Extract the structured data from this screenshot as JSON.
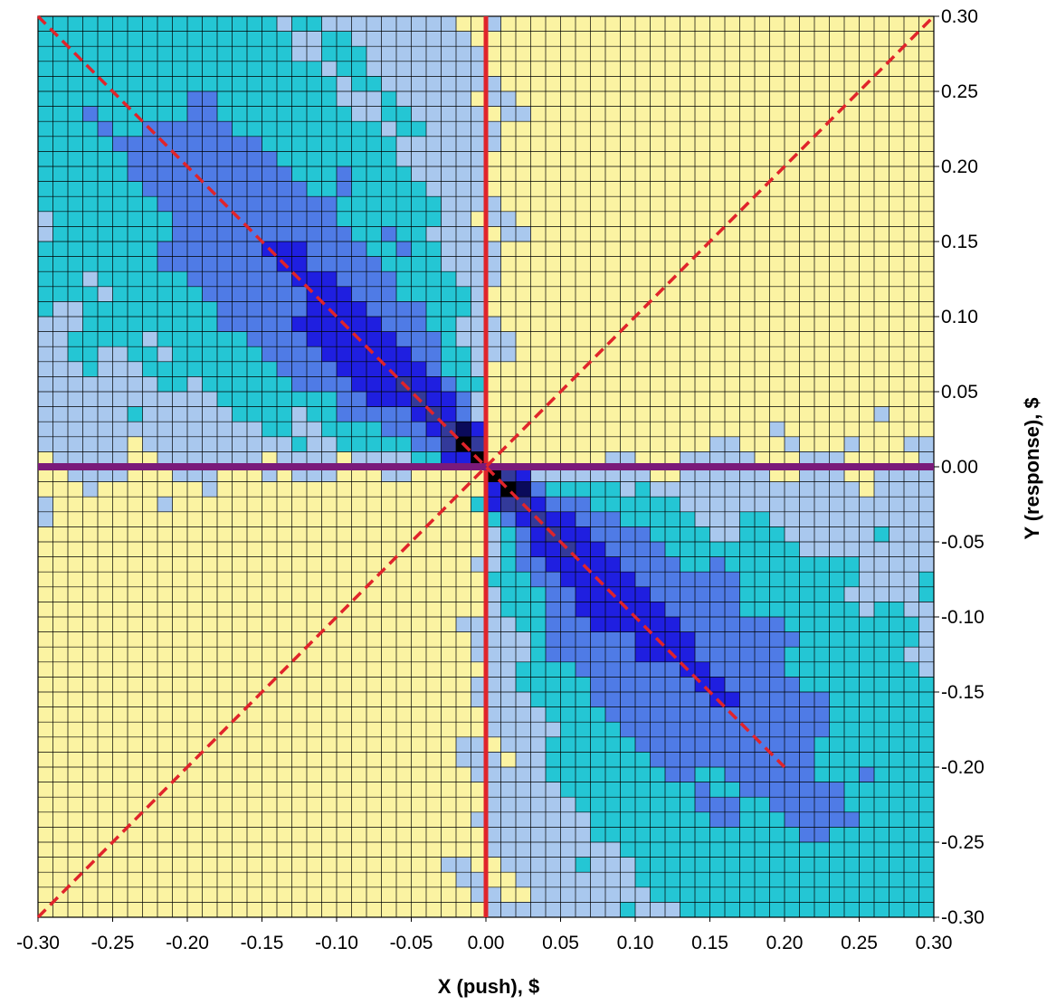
{
  "chart_data": {
    "type": "heatmap",
    "title": "",
    "xlabel": "X (push), $",
    "ylabel": "Y (response), $",
    "xlim": [
      -0.3,
      0.3
    ],
    "ylim": [
      -0.3,
      0.3
    ],
    "x_ticks": [
      "-0.30",
      "-0.25",
      "-0.20",
      "-0.15",
      "-0.10",
      "-0.05",
      "0.00",
      "0.05",
      "0.10",
      "0.15",
      "0.20",
      "0.25",
      "0.30"
    ],
    "y_ticks": [
      "0.30",
      "0.25",
      "0.20",
      "0.15",
      "0.10",
      "0.05",
      "0.00",
      "-0.05",
      "-0.10",
      "-0.15",
      "-0.20",
      "-0.25",
      "-0.30"
    ],
    "y_axis_side": "right",
    "grid": true,
    "grid_step": 0.01,
    "contour_levels": [
      {
        "level": 0,
        "color": "#fbf3a2"
      },
      {
        "level": 1,
        "color": "#a9c8ee"
      },
      {
        "level": 2,
        "color": "#24c6d4"
      },
      {
        "level": 3,
        "color": "#4f7be6"
      },
      {
        "level": 4,
        "color": "#1f1fe0"
      },
      {
        "level": 5,
        "color": "#333a9a"
      },
      {
        "level": 6,
        "color": "#0a0a5a"
      },
      {
        "level": 7,
        "color": "#000000"
      }
    ],
    "reference_lines": [
      {
        "name": "x=0",
        "style": "solid",
        "color": "#e0242b",
        "x": [
          0,
          0
        ],
        "y": [
          -0.3,
          0.3
        ]
      },
      {
        "name": "y=0",
        "style": "solid",
        "color": "#7a1a7a",
        "x": [
          -0.3,
          0.3
        ],
        "y": [
          0,
          0
        ]
      },
      {
        "name": "y=x",
        "style": "dashed",
        "color": "#e0242b",
        "x": [
          -0.3,
          0.3
        ],
        "y": [
          -0.3,
          0.3
        ]
      },
      {
        "name": "y=-x",
        "style": "dashed",
        "color": "#e0242b",
        "x": [
          -0.3,
          0.2
        ],
        "y": [
          0.3,
          -0.2
        ]
      }
    ],
    "background_color": "#fbf3a2",
    "line_colors": {
      "grid": "#000000",
      "contour_edge": "#0a1a40"
    }
  }
}
